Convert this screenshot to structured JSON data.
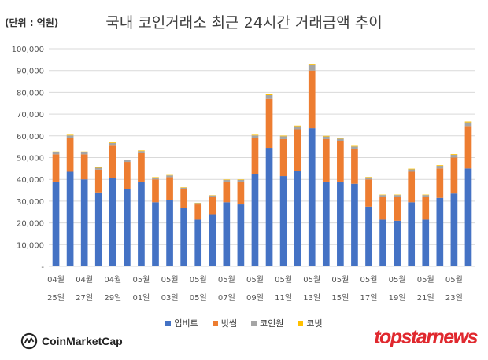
{
  "header": {
    "unit_label": "(단위 : 억원)",
    "title": "국내 코인거래소 최근 24시간 거래금액 추이"
  },
  "chart_data": {
    "type": "bar",
    "stacked": true,
    "title": "국내 코인거래소 최근 24시간 거래금액 추이",
    "unit": "(단위 : 억원)",
    "ylim": [
      0,
      100000
    ],
    "yticks": [
      "-",
      "10,000",
      "20,000",
      "30,000",
      "40,000",
      "50,000",
      "60,000",
      "70,000",
      "80,000",
      "90,000",
      "100,000"
    ],
    "grid": true,
    "legend_position": "bottom",
    "categories": [
      "04-25",
      "04-26",
      "04-27",
      "04-28",
      "04-29",
      "04-30",
      "05-01",
      "05-02",
      "05-03",
      "05-04",
      "05-05",
      "05-06",
      "05-07",
      "05-08",
      "05-09",
      "05-10",
      "05-11",
      "05-12",
      "05-13",
      "05-14",
      "05-15",
      "05-16",
      "05-17",
      "05-18",
      "05-19",
      "05-20",
      "05-21",
      "05-22",
      "05-23",
      "05-24"
    ],
    "x_tick_labels": [
      {
        "month": "04월",
        "day": "25일"
      },
      {
        "month": "04월",
        "day": "27일"
      },
      {
        "month": "04월",
        "day": "29일"
      },
      {
        "month": "05월",
        "day": "01일"
      },
      {
        "month": "05월",
        "day": "03일"
      },
      {
        "month": "05월",
        "day": "05일"
      },
      {
        "month": "05월",
        "day": "07일"
      },
      {
        "month": "05월",
        "day": "09일"
      },
      {
        "month": "05월",
        "day": "11일"
      },
      {
        "month": "05월",
        "day": "13일"
      },
      {
        "month": "05월",
        "day": "15일"
      },
      {
        "month": "05월",
        "day": "17일"
      },
      {
        "month": "05월",
        "day": "19일"
      },
      {
        "month": "05월",
        "day": "21일"
      },
      {
        "month": "05월",
        "day": "23일"
      }
    ],
    "series": [
      {
        "name": "업비트",
        "color": "#4472c4",
        "values": [
          39000,
          43500,
          40000,
          34000,
          40500,
          35500,
          39000,
          29500,
          30500,
          27000,
          21500,
          24000,
          29500,
          28500,
          42500,
          54500,
          41500,
          44000,
          63500,
          39000,
          39000,
          38000,
          27500,
          21500,
          21000,
          29500,
          21500,
          31500,
          33500,
          45000
        ]
      },
      {
        "name": "빗썸",
        "color": "#ed7d31",
        "values": [
          12500,
          15500,
          11500,
          10500,
          15000,
          12500,
          13000,
          10500,
          10500,
          8500,
          7000,
          8000,
          9500,
          10500,
          16500,
          22500,
          17000,
          19000,
          26500,
          19500,
          18500,
          16000,
          12500,
          10500,
          11000,
          14000,
          10500,
          13500,
          16500,
          19500
        ]
      },
      {
        "name": "코인원",
        "color": "#a5a5a5",
        "values": [
          1000,
          1200,
          1000,
          800,
          1200,
          900,
          1000,
          800,
          800,
          700,
          600,
          600,
          700,
          800,
          1200,
          1700,
          1300,
          1400,
          2500,
          1200,
          1200,
          1100,
          900,
          800,
          800,
          1100,
          800,
          1200,
          1300,
          1700
        ]
      },
      {
        "name": "코빗",
        "color": "#ffc000",
        "values": [
          300,
          300,
          300,
          200,
          300,
          200,
          300,
          200,
          200,
          200,
          150,
          150,
          200,
          200,
          300,
          400,
          300,
          300,
          600,
          300,
          300,
          300,
          200,
          200,
          200,
          300,
          200,
          300,
          300,
          400
        ]
      }
    ]
  },
  "footer": {
    "source_logo_text": "CoinMarketCap",
    "watermark_text": "topstarnews"
  }
}
